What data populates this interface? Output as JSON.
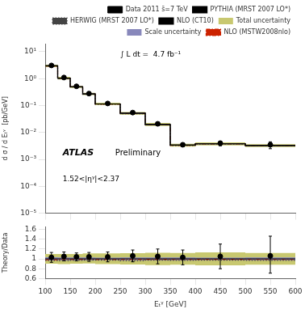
{
  "chart_data": [
    {
      "type": "line",
      "bins": [
        100,
        125,
        150,
        175,
        200,
        250,
        300,
        350,
        400,
        500,
        600
      ],
      "xlim": [
        100,
        600
      ],
      "xticks": [
        100,
        150,
        200,
        250,
        300,
        350,
        400,
        450,
        500,
        550,
        600
      ],
      "ylabel": "d σ / d Eₜᵞ  [pb/GeV]",
      "log": "y",
      "ylim": [
        1e-05,
        19.952623149688797
      ],
      "yticks": [
        {
          "value": 1e-05,
          "label": "10⁻⁵"
        },
        {
          "value": 0.0001,
          "label": "10⁻⁴"
        },
        {
          "value": 0.001,
          "label": "10⁻³"
        },
        {
          "value": 0.01,
          "label": "10⁻²"
        },
        {
          "value": 0.1,
          "label": "10⁻¹"
        },
        {
          "value": 1,
          "label": "10⁰"
        },
        {
          "value": 10,
          "label": "10¹"
        }
      ],
      "grid": false,
      "legend": "upper right",
      "tick_labels": "y",
      "annotations": [
        "∫ L dt =  4.7 fb⁻¹",
        "ATLAS",
        "Preliminary",
        "1.52<|ηᵞ|<2.37"
      ],
      "series": [
        {
          "name": "Data 2011 s̄=7 TeV",
          "type": "scatter",
          "marker": "circle",
          "color": "#000000",
          "x": [
            112.5,
            137.5,
            162.5,
            187.5,
            225,
            275,
            325,
            375,
            450,
            550
          ],
          "values": [
            3.1,
            1.1,
            0.52,
            0.28,
            0.12,
            0.055,
            0.021,
            0.0035,
            0.004,
            0.0035
          ],
          "error_up": [
            0.3,
            0.1,
            0.04,
            0.025,
            0.012,
            0.006,
            0.003,
            0.0005,
            0.0008,
            0.001
          ],
          "error_down": [
            0.3,
            0.1,
            0.04,
            0.025,
            0.012,
            0.006,
            0.003,
            0.0005,
            0.0008,
            0.001
          ]
        },
        {
          "name": "PYTHIA (MRST 2007 LO*)",
          "color": "#000000",
          "line_style": "solid",
          "values": [
            3.0,
            1.05,
            0.5,
            0.27,
            0.115,
            0.052,
            0.02,
            0.0034,
            0.0038,
            0.0033
          ]
        },
        {
          "name": "HERWIG (MRST 2007 LO*)",
          "color": "#444444",
          "line_style": "dotted",
          "values": [
            2.9,
            1.01,
            0.485,
            0.263,
            0.112,
            0.05,
            0.0195,
            0.0033,
            0.0037,
            0.0032
          ]
        },
        {
          "name": "NLO (CT10)",
          "color": "#000000",
          "line_style": "solid",
          "values": [
            3.0,
            1.05,
            0.5,
            0.27,
            0.115,
            0.052,
            0.02,
            0.0034,
            0.0038,
            0.0033
          ]
        },
        {
          "name": "Total uncertainty",
          "type": "band",
          "color": "#c8c870",
          "lower": [
            2.7,
            0.94,
            0.45,
            0.245,
            0.103,
            0.046,
            0.0175,
            0.003,
            0.0033,
            0.0029
          ],
          "upper": [
            3.3,
            1.16,
            0.55,
            0.3,
            0.128,
            0.058,
            0.0225,
            0.0038,
            0.0043,
            0.0037
          ]
        },
        {
          "name": "Scale uncertainty",
          "type": "band",
          "color": "#8888bb",
          "lower": [
            2.9,
            1.02,
            0.485,
            0.262,
            0.112,
            0.0505,
            0.0194,
            0.0033,
            0.0037,
            0.0032
          ],
          "upper": [
            3.1,
            1.08,
            0.515,
            0.278,
            0.118,
            0.0535,
            0.0206,
            0.0035,
            0.0039,
            0.0034
          ]
        },
        {
          "name": "NLO (MSTW2008nlo)",
          "color": "#cc2200",
          "line_style": "dashdot",
          "values": [
            2.95,
            1.04,
            0.495,
            0.267,
            0.1135,
            0.0515,
            0.0198,
            0.00336,
            0.00376,
            0.00326
          ]
        }
      ]
    },
    {
      "type": "line",
      "bins": [
        100,
        125,
        150,
        175,
        200,
        250,
        300,
        350,
        400,
        500,
        600
      ],
      "xlim": [
        100,
        600
      ],
      "xticks": [
        100,
        150,
        200,
        250,
        300,
        350,
        400,
        450,
        500,
        550,
        600
      ],
      "xlabel": "Eₜᵞ [GeV]",
      "ylabel": "Theory/Data",
      "ylim": [
        0.6,
        1.65
      ],
      "yticks": [
        0.6,
        0.8,
        1,
        1.2,
        1.4,
        1.6
      ],
      "grid": false,
      "legend": false,
      "series": [
        {
          "name": "Total uncertainty",
          "type": "band",
          "color": "#c8c870",
          "lower": [
            0.9,
            0.895,
            0.9,
            0.908,
            0.895,
            0.885,
            0.875,
            0.882,
            0.87,
            0.88
          ],
          "upper": [
            1.1,
            1.1,
            1.1,
            1.11,
            1.11,
            1.115,
            1.125,
            1.12,
            1.13,
            1.12
          ]
        },
        {
          "name": "Scale uncertainty",
          "type": "band",
          "color": "#8888bb",
          "lower": [
            0.967,
            0.971,
            0.97,
            0.97,
            0.974,
            0.971,
            0.97,
            0.971,
            0.974,
            0.97
          ],
          "upper": [
            1.033,
            1.029,
            1.03,
            1.03,
            1.026,
            1.029,
            1.03,
            1.029,
            1.026,
            1.03
          ]
        },
        {
          "name": "PYTHIA (MRST 2007 LO*)",
          "color": "#000000",
          "line_style": "solid",
          "values": [
            1.0,
            1.0,
            1.0,
            1.0,
            1.0,
            1.0,
            1.0,
            1.0,
            1.0,
            1.0
          ]
        },
        {
          "name": "HERWIG (MRST 2007 LO*)",
          "color": "#444444",
          "line_style": "dotted",
          "values": [
            0.967,
            0.962,
            0.97,
            0.974,
            0.974,
            0.962,
            0.975,
            0.971,
            0.974,
            0.97
          ]
        },
        {
          "name": "NLO (MSTW2008nlo)",
          "color": "#cc2200",
          "line_style": "dashdot",
          "values": [
            0.983,
            0.99,
            0.99,
            0.989,
            0.987,
            0.99,
            0.99,
            0.988,
            0.991,
            0.988
          ]
        },
        {
          "name": "Data 2011 s̄=7 TeV",
          "type": "scatter",
          "marker": "circle",
          "color": "#000000",
          "x": [
            112.5,
            137.5,
            162.5,
            187.5,
            225,
            275,
            325,
            375,
            450,
            550
          ],
          "values": [
            1.03,
            1.05,
            1.04,
            1.04,
            1.04,
            1.06,
            1.05,
            1.03,
            1.05,
            1.06
          ],
          "error_up": [
            0.1,
            0.09,
            0.08,
            0.09,
            0.1,
            0.12,
            0.15,
            0.15,
            0.25,
            0.4
          ],
          "error_down": [
            0.1,
            0.09,
            0.08,
            0.09,
            0.1,
            0.12,
            0.15,
            0.15,
            0.25,
            0.35
          ]
        }
      ]
    }
  ]
}
